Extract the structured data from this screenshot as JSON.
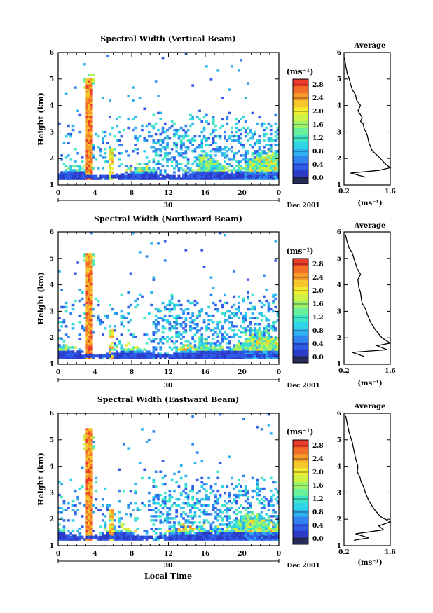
{
  "figure": {
    "xlabel": "Local Time",
    "date_label": "Dec 2001",
    "day_label": "30",
    "unit_label": "(ms⁻¹)",
    "avg_title": "Average",
    "avg_xlabel": "(ms⁻¹)"
  },
  "colormap": [
    "#262b59",
    "#2b3cc8",
    "#2f5be8",
    "#2f84f0",
    "#2fb0f0",
    "#2fd4e6",
    "#3fe7c7",
    "#6af09a",
    "#9cf36a",
    "#cdf244",
    "#f2ec2f",
    "#f7c52c",
    "#f79a29",
    "#f36e26",
    "#ea3b2b"
  ],
  "chart_data": [
    {
      "type": "heatmap",
      "title": "Spectral Width (Vertical Beam)",
      "ylabel": "Height (km)",
      "xlim": [
        0,
        24
      ],
      "ylim": [
        1,
        6
      ],
      "xticks": [
        "0",
        "4",
        "8",
        "12",
        "16",
        "20",
        "0"
      ],
      "yticks": [
        "1",
        "2",
        "3",
        "4",
        "5",
        "6"
      ],
      "colorbar": {
        "label": "(ms⁻¹)",
        "ticks": [
          "0.0",
          "0.4",
          "0.8",
          "1.2",
          "1.6",
          "2.0",
          "2.4",
          "2.8"
        ],
        "range": [
          0,
          2.8
        ]
      },
      "average_profile": {
        "title": "Average",
        "xlim": [
          0.2,
          1.6
        ],
        "xticks": [
          "0.2",
          "1.6"
        ],
        "ylim": [
          1,
          6
        ],
        "yticks": [
          "1",
          "2",
          "3",
          "4",
          "5",
          "6"
        ],
        "x": [
          0.85,
          0.4,
          1.25,
          1.6,
          1.45,
          1.3,
          1.05,
          0.95,
          0.9,
          0.82,
          0.78,
          0.7,
          0.75,
          0.62,
          0.7,
          0.58,
          0.55,
          0.45,
          0.4,
          0.36,
          0.3,
          0.25,
          0.22
        ],
        "y": [
          1.3,
          1.45,
          1.55,
          1.65,
          1.8,
          2.0,
          2.3,
          2.6,
          2.9,
          3.1,
          3.3,
          3.4,
          3.55,
          3.8,
          4.0,
          4.2,
          4.4,
          4.6,
          4.8,
          5.0,
          5.2,
          5.5,
          5.8
        ]
      }
    },
    {
      "type": "heatmap",
      "title": "Spectral Width (Northward Beam)",
      "ylabel": "Height (km)",
      "xlim": [
        0,
        24
      ],
      "ylim": [
        1,
        6
      ],
      "xticks": [
        "0",
        "4",
        "8",
        "12",
        "16",
        "20",
        "0"
      ],
      "yticks": [
        "1",
        "2",
        "3",
        "4",
        "5",
        "6"
      ],
      "colorbar": {
        "label": "(ms⁻¹)",
        "ticks": [
          "0.0",
          "0.4",
          "0.8",
          "1.2",
          "1.6",
          "2.0",
          "2.4",
          "2.8"
        ],
        "range": [
          0,
          2.8
        ]
      },
      "average_profile": {
        "title": "Average",
        "xlim": [
          0.2,
          1.6
        ],
        "xticks": [
          "0.2",
          "1.6"
        ],
        "ylim": [
          1,
          6
        ],
        "yticks": [
          "1",
          "2",
          "3",
          "4",
          "5",
          "6"
        ],
        "x": [
          0.8,
          0.45,
          1.5,
          1.2,
          1.6,
          1.35,
          1.15,
          1.0,
          0.9,
          0.85,
          0.75,
          0.72,
          0.7,
          0.65,
          0.62,
          0.7,
          0.6,
          0.55,
          0.5,
          0.45,
          0.35,
          0.3,
          0.24
        ],
        "y": [
          1.3,
          1.45,
          1.55,
          1.7,
          1.8,
          2.0,
          2.3,
          2.6,
          2.9,
          3.1,
          3.3,
          3.5,
          3.7,
          3.9,
          4.2,
          4.4,
          4.6,
          4.8,
          5.0,
          5.2,
          5.4,
          5.6,
          5.9
        ]
      }
    },
    {
      "type": "heatmap",
      "title": "Spectral Width (Eastward Beam)",
      "ylabel": "Height (km)",
      "xlim": [
        0,
        24
      ],
      "ylim": [
        1,
        6
      ],
      "xticks": [
        "0",
        "4",
        "8",
        "12",
        "16",
        "20",
        "0"
      ],
      "yticks": [
        "1",
        "2",
        "3",
        "4",
        "5",
        "6"
      ],
      "colorbar": {
        "label": "(ms⁻¹)",
        "ticks": [
          "0.0",
          "0.4",
          "0.8",
          "1.2",
          "1.6",
          "2.0",
          "2.4",
          "2.8"
        ],
        "range": [
          0,
          2.8
        ]
      },
      "average_profile": {
        "title": "Average",
        "xlim": [
          0.2,
          1.6
        ],
        "xticks": [
          "0.2",
          "1.6"
        ],
        "ylim": [
          1,
          6
        ],
        "yticks": [
          "1",
          "2",
          "3",
          "4",
          "5",
          "6"
        ],
        "x": [
          0.5,
          0.95,
          0.55,
          1.4,
          1.25,
          1.6,
          1.3,
          1.1,
          0.95,
          0.85,
          0.8,
          0.72,
          0.68,
          0.6,
          0.62,
          0.55,
          0.5,
          0.45,
          0.4,
          0.35,
          0.3,
          0.25
        ],
        "y": [
          1.2,
          1.3,
          1.45,
          1.6,
          1.75,
          1.9,
          2.1,
          2.4,
          2.7,
          3.0,
          3.2,
          3.4,
          3.6,
          3.8,
          4.0,
          4.3,
          4.6,
          4.9,
          5.1,
          5.3,
          5.6,
          5.9
        ]
      }
    }
  ]
}
